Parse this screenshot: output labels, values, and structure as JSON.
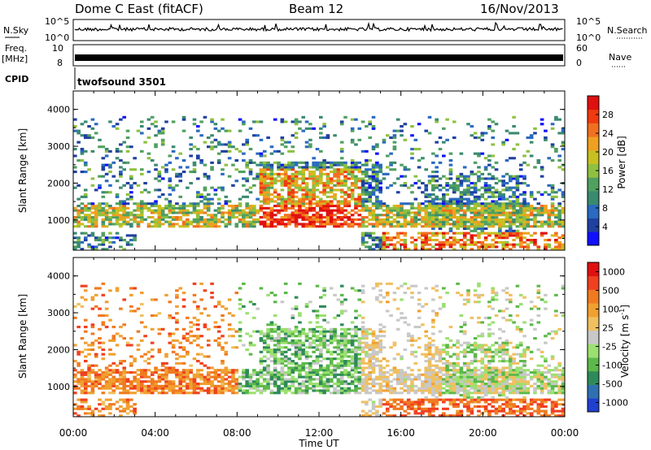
{
  "header": {
    "title": "Dome C East (fitACF)",
    "beam": "Beam 12",
    "date": "16/Nov/2013"
  },
  "top_panels": {
    "nsky_label": "N.Sky",
    "nsky_ticks": [
      "10^5",
      "10^0"
    ],
    "nsearch_label": "N.Search",
    "nsearch_ticks": [
      "10^5",
      "10^0"
    ],
    "freq_label": "Freq.",
    "freq_unit": "[MHz]",
    "freq_ticks": [
      "10",
      "8"
    ],
    "nave_label": "Nave",
    "nave_ticks": [
      "60",
      "0"
    ],
    "cpid_label": "CPID",
    "cpid_value": "twofsound 3501"
  },
  "chart_data": [
    {
      "type": "heatmap",
      "name": "power",
      "ylabel": "Slant Range [km]",
      "ylim": [
        180,
        4500
      ],
      "xlim": [
        0,
        24
      ],
      "yticks": [
        "4000",
        "3000",
        "2000",
        "1000"
      ],
      "colorbar": {
        "label": "Power [dB]",
        "ticks": [
          "28",
          "24",
          "20",
          "16",
          "12",
          "8",
          "4"
        ],
        "range": [
          0,
          32
        ],
        "colors": [
          "#1010ff",
          "#2040a0",
          "#2a6ac0",
          "#3a8a70",
          "#50a060",
          "#8fc040",
          "#c8c020",
          "#f0a020",
          "#f07020",
          "#f03a10",
          "#e01010"
        ]
      }
    },
    {
      "type": "heatmap",
      "name": "velocity",
      "xlabel": "Time UT",
      "ylabel": "Slant Range [km]",
      "ylim": [
        180,
        4500
      ],
      "xlim": [
        0,
        24
      ],
      "xticks": [
        "00:00",
        "04:00",
        "08:00",
        "12:00",
        "16:00",
        "20:00",
        "00:00"
      ],
      "yticks": [
        "4000",
        "3000",
        "2000",
        "1000"
      ],
      "colorbar": {
        "label": "Velocity [m s",
        "label_sup": "-1",
        "label_end": "]",
        "ticks": [
          "1000",
          "500",
          "100",
          "25",
          "-25",
          "-100",
          "-500",
          "-1000"
        ],
        "colors": [
          "#2040d0",
          "#3070b0",
          "#2f8a5a",
          "#5cb84a",
          "#9be070",
          "#c8c8c8",
          "#f0c060",
          "#f0a030",
          "#f07a20",
          "#f04020",
          "#e01010"
        ]
      }
    }
  ]
}
